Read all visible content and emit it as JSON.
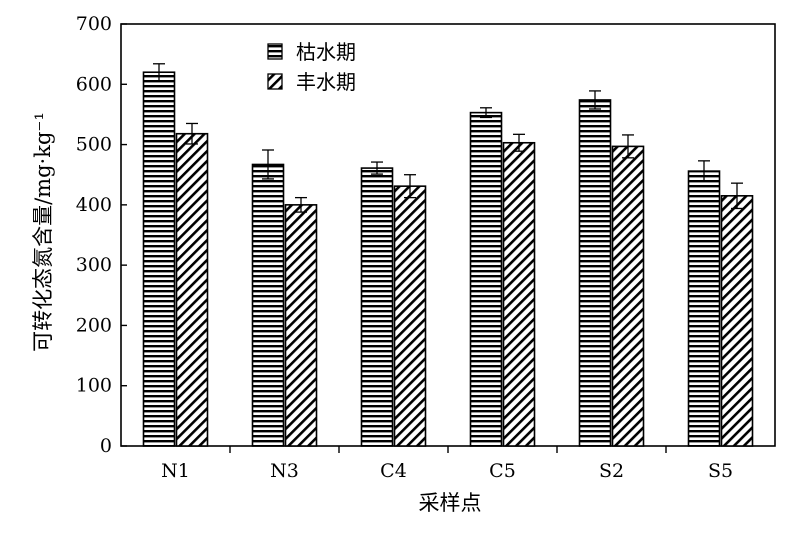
{
  "chart_data": {
    "type": "bar",
    "title": "",
    "xlabel": "采样点",
    "ylabel": "可转化态氮含量/mg·kg⁻¹",
    "categories": [
      "N1",
      "N3",
      "C4",
      "C5",
      "S2",
      "S5"
    ],
    "ylim": [
      0,
      700
    ],
    "yticks": [
      "0",
      "100",
      "200",
      "300",
      "400",
      "500",
      "600",
      "700"
    ],
    "grid": false,
    "legend_position": "top-center",
    "series": [
      {
        "name": "枯水期",
        "pattern": "horizontal-stripes",
        "values": [
          620,
          467,
          461,
          553,
          574,
          456
        ],
        "errors": [
          14,
          24,
          10,
          8,
          15,
          17
        ]
      },
      {
        "name": "丰水期",
        "pattern": "diagonal-stripes",
        "values": [
          518,
          400,
          431,
          503,
          497,
          415
        ],
        "errors": [
          17,
          12,
          19,
          14,
          19,
          21
        ]
      }
    ],
    "colors": {
      "stroke": "#000000",
      "fill": "#ffffff"
    }
  }
}
